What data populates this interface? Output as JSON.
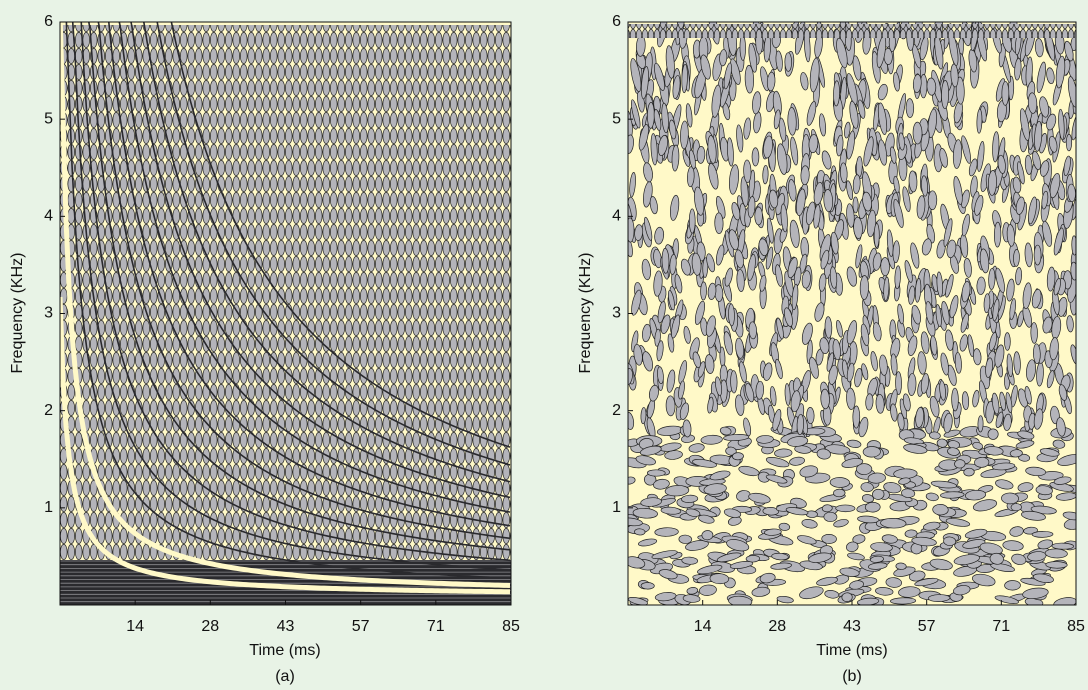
{
  "chart_data": [
    {
      "type": "tiling",
      "caption": "(a)",
      "x_label": "Time (ms)",
      "y_label": "Frequency (KHz)",
      "xlim": [
        0,
        85
      ],
      "ylim": [
        0,
        6
      ],
      "xticks": [
        {
          "value": 14.17,
          "label": "14"
        },
        {
          "value": 28.33,
          "label": "28"
        },
        {
          "value": 42.5,
          "label": "43"
        },
        {
          "value": 56.67,
          "label": "57"
        },
        {
          "value": 70.83,
          "label": "71"
        },
        85
      ],
      "yticks": [
        1,
        2,
        3,
        4,
        5,
        6
      ]
    },
    {
      "type": "tiling",
      "caption": "(b)",
      "x_label": "Time (ms)",
      "y_label": "Frequency (KHz)",
      "xlim": [
        0,
        85
      ],
      "ylim": [
        0,
        6
      ],
      "xticks": [
        {
          "value": 14.17,
          "label": "14"
        },
        {
          "value": 28.33,
          "label": "28"
        },
        {
          "value": 42.5,
          "label": "43"
        },
        {
          "value": 56.67,
          "label": "57"
        },
        {
          "value": 70.83,
          "label": "71"
        },
        85
      ],
      "yticks": [
        1,
        2,
        3,
        4,
        5,
        6
      ]
    }
  ]
}
